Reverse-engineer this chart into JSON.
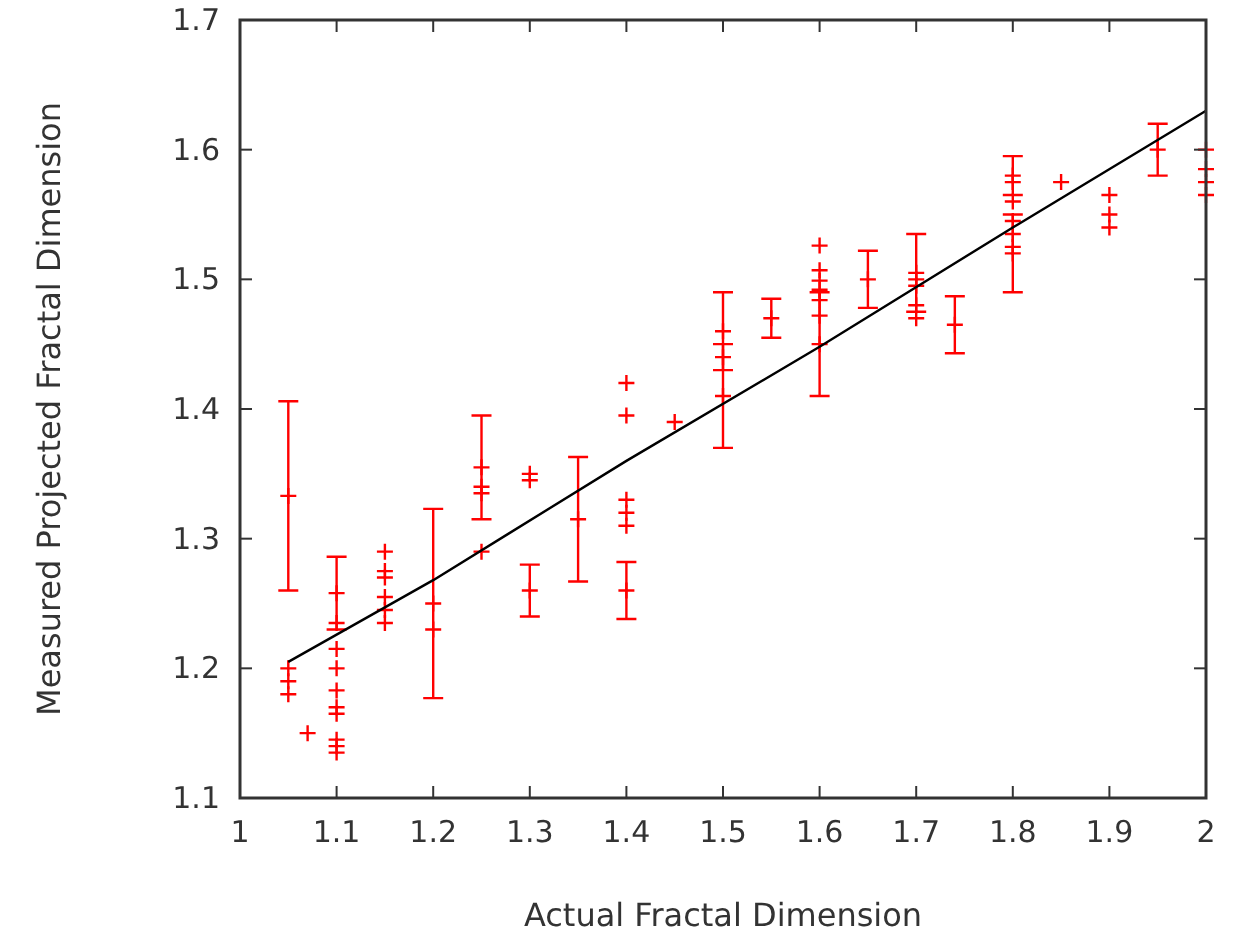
{
  "chart_data": {
    "type": "scatter",
    "xlabel": "Actual Fractal Dimension",
    "ylabel": "Measured Projected Fractal Dimension",
    "xlim": [
      1,
      2
    ],
    "ylim": [
      1.1,
      1.7
    ],
    "xticks": [
      1,
      1.1,
      1.2,
      1.3,
      1.4,
      1.5,
      1.6,
      1.7,
      1.8,
      1.9,
      2
    ],
    "yticks": [
      1.1,
      1.2,
      1.3,
      1.4,
      1.5,
      1.6,
      1.7
    ],
    "grid": false,
    "series": [
      {
        "type": "scatter",
        "marker": "cross",
        "color": "#ff0000",
        "x": [
          1.05,
          1.05,
          1.05,
          1.05,
          1.07,
          1.1,
          1.1,
          1.1,
          1.1,
          1.1,
          1.1,
          1.1,
          1.1,
          1.1,
          1.1,
          1.15,
          1.15,
          1.15,
          1.15,
          1.15,
          1.15,
          1.2,
          1.2,
          1.25,
          1.25,
          1.25,
          1.25,
          1.3,
          1.3,
          1.3,
          1.35,
          1.4,
          1.4,
          1.4,
          1.4,
          1.4,
          1.4,
          1.45,
          1.5,
          1.5,
          1.5,
          1.55,
          1.6,
          1.6,
          1.6,
          1.6,
          1.6,
          1.6,
          1.6,
          1.65,
          1.7,
          1.7,
          1.7,
          1.7,
          1.7,
          1.74,
          1.8,
          1.8,
          1.8,
          1.8,
          1.8,
          1.8,
          1.8,
          1.85,
          1.9,
          1.9,
          1.9,
          1.95,
          2,
          2,
          2,
          2
        ],
        "values": [
          1.333,
          1.2,
          1.19,
          1.18,
          1.15,
          1.258,
          1.235,
          1.215,
          1.2,
          1.183,
          1.17,
          1.165,
          1.145,
          1.14,
          1.135,
          1.29,
          1.275,
          1.27,
          1.255,
          1.245,
          1.235,
          1.25,
          1.23,
          1.355,
          1.34,
          1.335,
          1.29,
          1.35,
          1.345,
          1.26,
          1.315,
          1.42,
          1.395,
          1.33,
          1.32,
          1.31,
          1.26,
          1.39,
          1.46,
          1.44,
          1.41,
          1.47,
          1.526,
          1.507,
          1.499,
          1.492,
          1.484,
          1.472,
          1.45,
          1.5,
          1.505,
          1.5,
          1.495,
          1.48,
          1.47,
          1.465,
          1.58,
          1.575,
          1.56,
          1.545,
          1.535,
          1.525,
          1.52,
          1.575,
          1.565,
          1.55,
          1.54,
          1.6,
          1.6,
          1.585,
          1.575,
          1.565
        ],
        "errors": [
          0.073,
          null,
          null,
          null,
          null,
          0.028,
          null,
          null,
          null,
          null,
          null,
          null,
          null,
          null,
          null,
          null,
          null,
          null,
          null,
          null,
          null,
          0.073,
          null,
          0.04,
          null,
          null,
          null,
          null,
          null,
          0.02,
          0.048,
          null,
          null,
          null,
          null,
          null,
          0.022,
          null,
          0.03,
          null,
          0.04,
          0.015,
          null,
          null,
          null,
          null,
          null,
          null,
          0.04,
          0.022,
          0.03,
          null,
          null,
          null,
          null,
          0.022,
          0.015,
          null,
          null,
          null,
          null,
          null,
          0.03,
          null,
          null,
          null,
          null,
          0.02,
          null,
          null,
          null,
          null
        ]
      },
      {
        "type": "line",
        "marker": "none",
        "color": "#000000",
        "x": [
          1.05,
          1.2,
          1.4,
          1.6,
          1.8,
          2
        ],
        "values": [
          1.205,
          1.268,
          1.36,
          1.448,
          1.54,
          1.63
        ]
      }
    ]
  }
}
